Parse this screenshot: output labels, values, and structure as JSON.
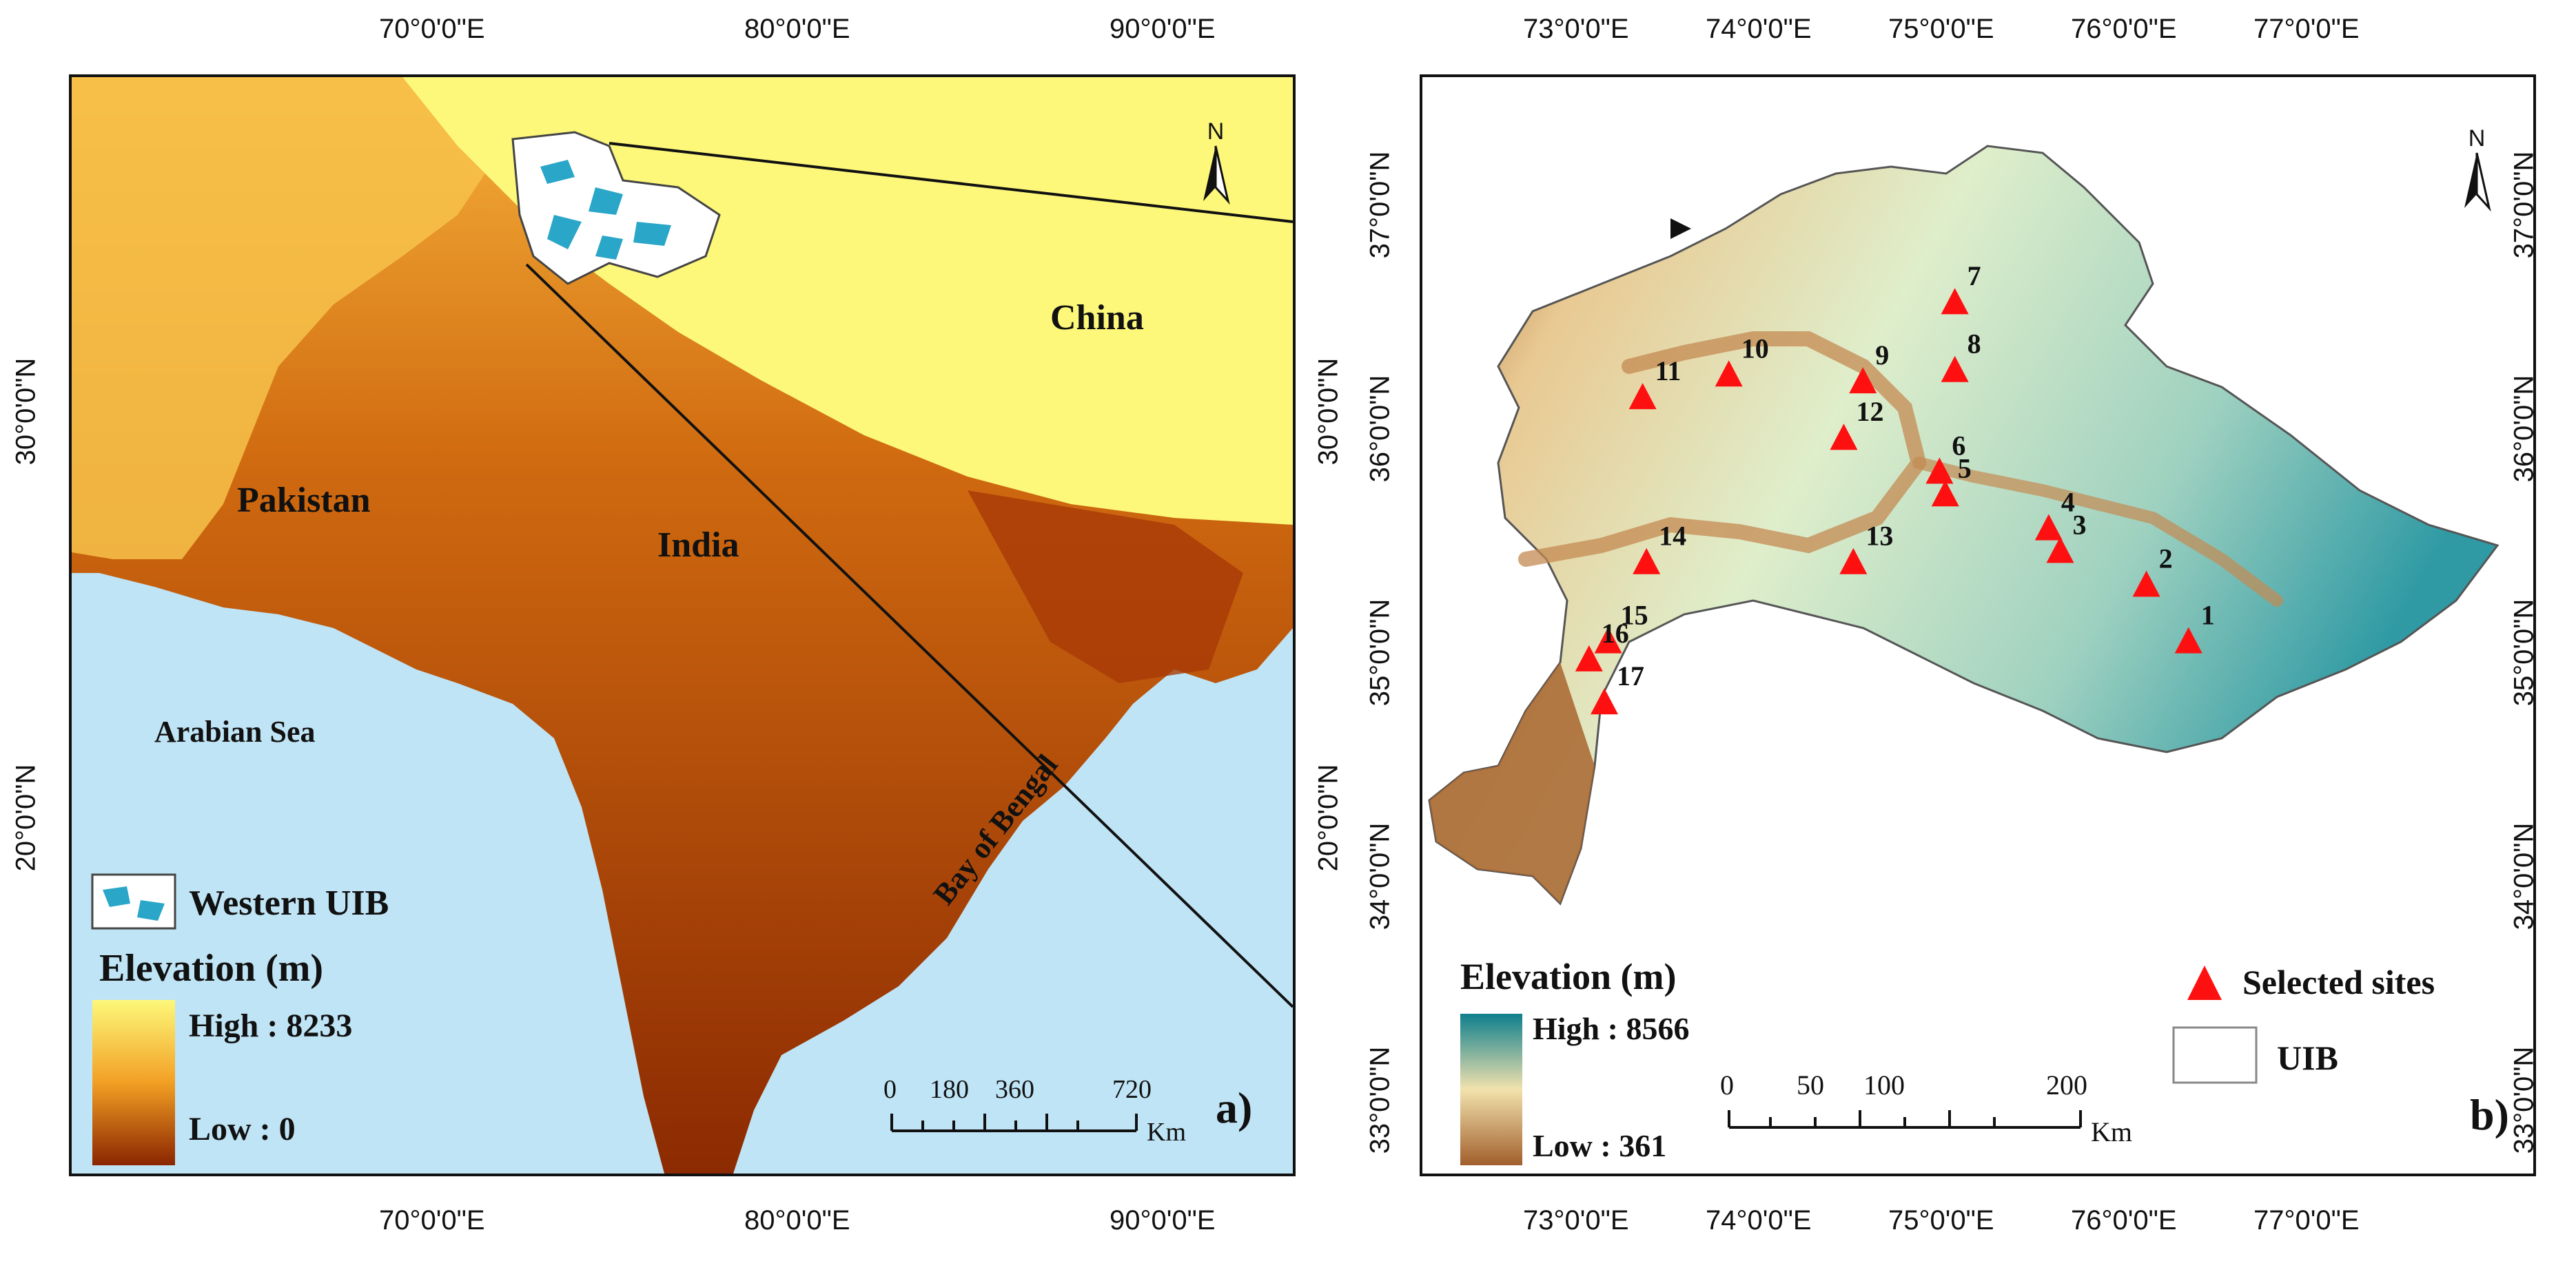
{
  "panel_a": {
    "lon_ticks_top": [
      "70°0'0\"E",
      "80°0'0\"E",
      "90°0'0\"E"
    ],
    "lon_ticks_bottom": [
      "70°0'0\"E",
      "80°0'0\"E",
      "90°0'0\"E"
    ],
    "lat_ticks_left": [
      "30°0'0\"N",
      "20°0'0\"N"
    ],
    "lat_ticks_right": [
      "30°0'0\"N",
      "20°0'0\"N"
    ],
    "labels": {
      "china": "China",
      "pakistan": "Pakistan",
      "india": "India",
      "arabian_sea": "Arabian Sea",
      "bay_of_bengal": "Bay of Bengal"
    },
    "legend": {
      "region": "Western UIB",
      "elevation_title": "Elevation (m)",
      "high": "High : 8233",
      "low": "Low : 0"
    },
    "scale": {
      "values": [
        "0",
        "180",
        "360",
        "720"
      ],
      "unit": "Km"
    },
    "north": "N",
    "panel_letter": "a)",
    "colors": {
      "high": "#fdf87a",
      "mid": "#f2a024",
      "low": "#8a2500",
      "sea": "#bfe4f5",
      "glacier": "#2aa6c9"
    }
  },
  "panel_b": {
    "lon_ticks_top": [
      "73°0'0\"E",
      "74°0'0\"E",
      "75°0'0\"E",
      "76°0'0\"E",
      "77°0'0\"E"
    ],
    "lon_ticks_bottom": [
      "73°0'0\"E",
      "74°0'0\"E",
      "75°0'0\"E",
      "76°0'0\"E",
      "77°0'0\"E"
    ],
    "lat_ticks_left": [
      "37°0'0\"N",
      "36°0'0\"N",
      "35°0'0\"N",
      "34°0'0\"N",
      "33°0'0\"N"
    ],
    "lat_ticks_right": [
      "37°0'0\"N",
      "36°0'0\"N",
      "35°0'0\"N",
      "34°0'0\"N",
      "33°0'0\"N"
    ],
    "legend": {
      "elevation_title": "Elevation (m)",
      "high": "High : 8566",
      "low": "Low : 361",
      "sites": "Selected sites",
      "uib": "UIB"
    },
    "scale": {
      "values": [
        "0",
        "50",
        "100",
        "200"
      ],
      "unit": "Km"
    },
    "north": "N",
    "panel_letter": "b)",
    "sites": [
      {
        "id": "1",
        "lon": 76.05,
        "lat": 35.1
      },
      {
        "id": "2",
        "lon": 75.83,
        "lat": 35.35
      },
      {
        "id": "3",
        "lon": 75.38,
        "lat": 35.5
      },
      {
        "id": "4",
        "lon": 75.32,
        "lat": 35.6
      },
      {
        "id": "5",
        "lon": 74.78,
        "lat": 35.75
      },
      {
        "id": "6",
        "lon": 74.75,
        "lat": 35.85
      },
      {
        "id": "7",
        "lon": 74.83,
        "lat": 36.6
      },
      {
        "id": "8",
        "lon": 74.83,
        "lat": 36.3
      },
      {
        "id": "9",
        "lon": 74.35,
        "lat": 36.25
      },
      {
        "id": "10",
        "lon": 73.65,
        "lat": 36.28
      },
      {
        "id": "11",
        "lon": 73.2,
        "lat": 36.18
      },
      {
        "id": "12",
        "lon": 74.25,
        "lat": 36.0
      },
      {
        "id": "13",
        "lon": 74.3,
        "lat": 35.45
      },
      {
        "id": "14",
        "lon": 73.22,
        "lat": 35.45
      },
      {
        "id": "15",
        "lon": 73.02,
        "lat": 35.1
      },
      {
        "id": "16",
        "lon": 72.92,
        "lat": 35.02
      },
      {
        "id": "17",
        "lon": 73.0,
        "lat": 34.83
      }
    ],
    "colors": {
      "high": "#0e7f8d",
      "mid": "#f2e2ad",
      "low": "#a15f2c",
      "site": "#ff1010"
    }
  }
}
